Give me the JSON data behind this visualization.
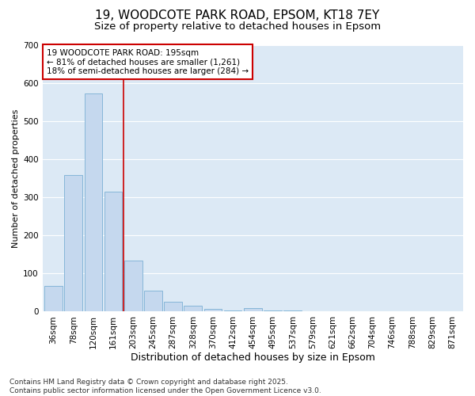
{
  "title1": "19, WOODCOTE PARK ROAD, EPSOM, KT18 7EY",
  "title2": "Size of property relative to detached houses in Epsom",
  "xlabel": "Distribution of detached houses by size in Epsom",
  "ylabel": "Number of detached properties",
  "categories": [
    "36sqm",
    "78sqm",
    "120sqm",
    "161sqm",
    "203sqm",
    "245sqm",
    "287sqm",
    "328sqm",
    "370sqm",
    "412sqm",
    "454sqm",
    "495sqm",
    "537sqm",
    "579sqm",
    "621sqm",
    "662sqm",
    "704sqm",
    "746sqm",
    "788sqm",
    "829sqm",
    "871sqm"
  ],
  "values": [
    68,
    358,
    572,
    315,
    133,
    55,
    26,
    15,
    6,
    3,
    10,
    3,
    3,
    0,
    0,
    0,
    0,
    0,
    0,
    0,
    0
  ],
  "bar_color": "#c5d8ee",
  "bar_edge_color": "#7bafd4",
  "vline_color": "#cc0000",
  "vline_x": 3.5,
  "annotation_text": "19 WOODCOTE PARK ROAD: 195sqm\n← 81% of detached houses are smaller (1,261)\n18% of semi-detached houses are larger (284) →",
  "annotation_box_color": "#ffffff",
  "annotation_box_edge": "#cc0000",
  "ylim": [
    0,
    700
  ],
  "yticks": [
    0,
    100,
    200,
    300,
    400,
    500,
    600,
    700
  ],
  "footnote": "Contains HM Land Registry data © Crown copyright and database right 2025.\nContains public sector information licensed under the Open Government Licence v3.0.",
  "fig_bg_color": "#ffffff",
  "plot_bg_color": "#dce9f5",
  "grid_color": "#ffffff",
  "title1_fontsize": 11,
  "title2_fontsize": 9.5,
  "xlabel_fontsize": 9,
  "ylabel_fontsize": 8,
  "tick_fontsize": 7.5,
  "annot_fontsize": 7.5,
  "footnote_fontsize": 6.5
}
